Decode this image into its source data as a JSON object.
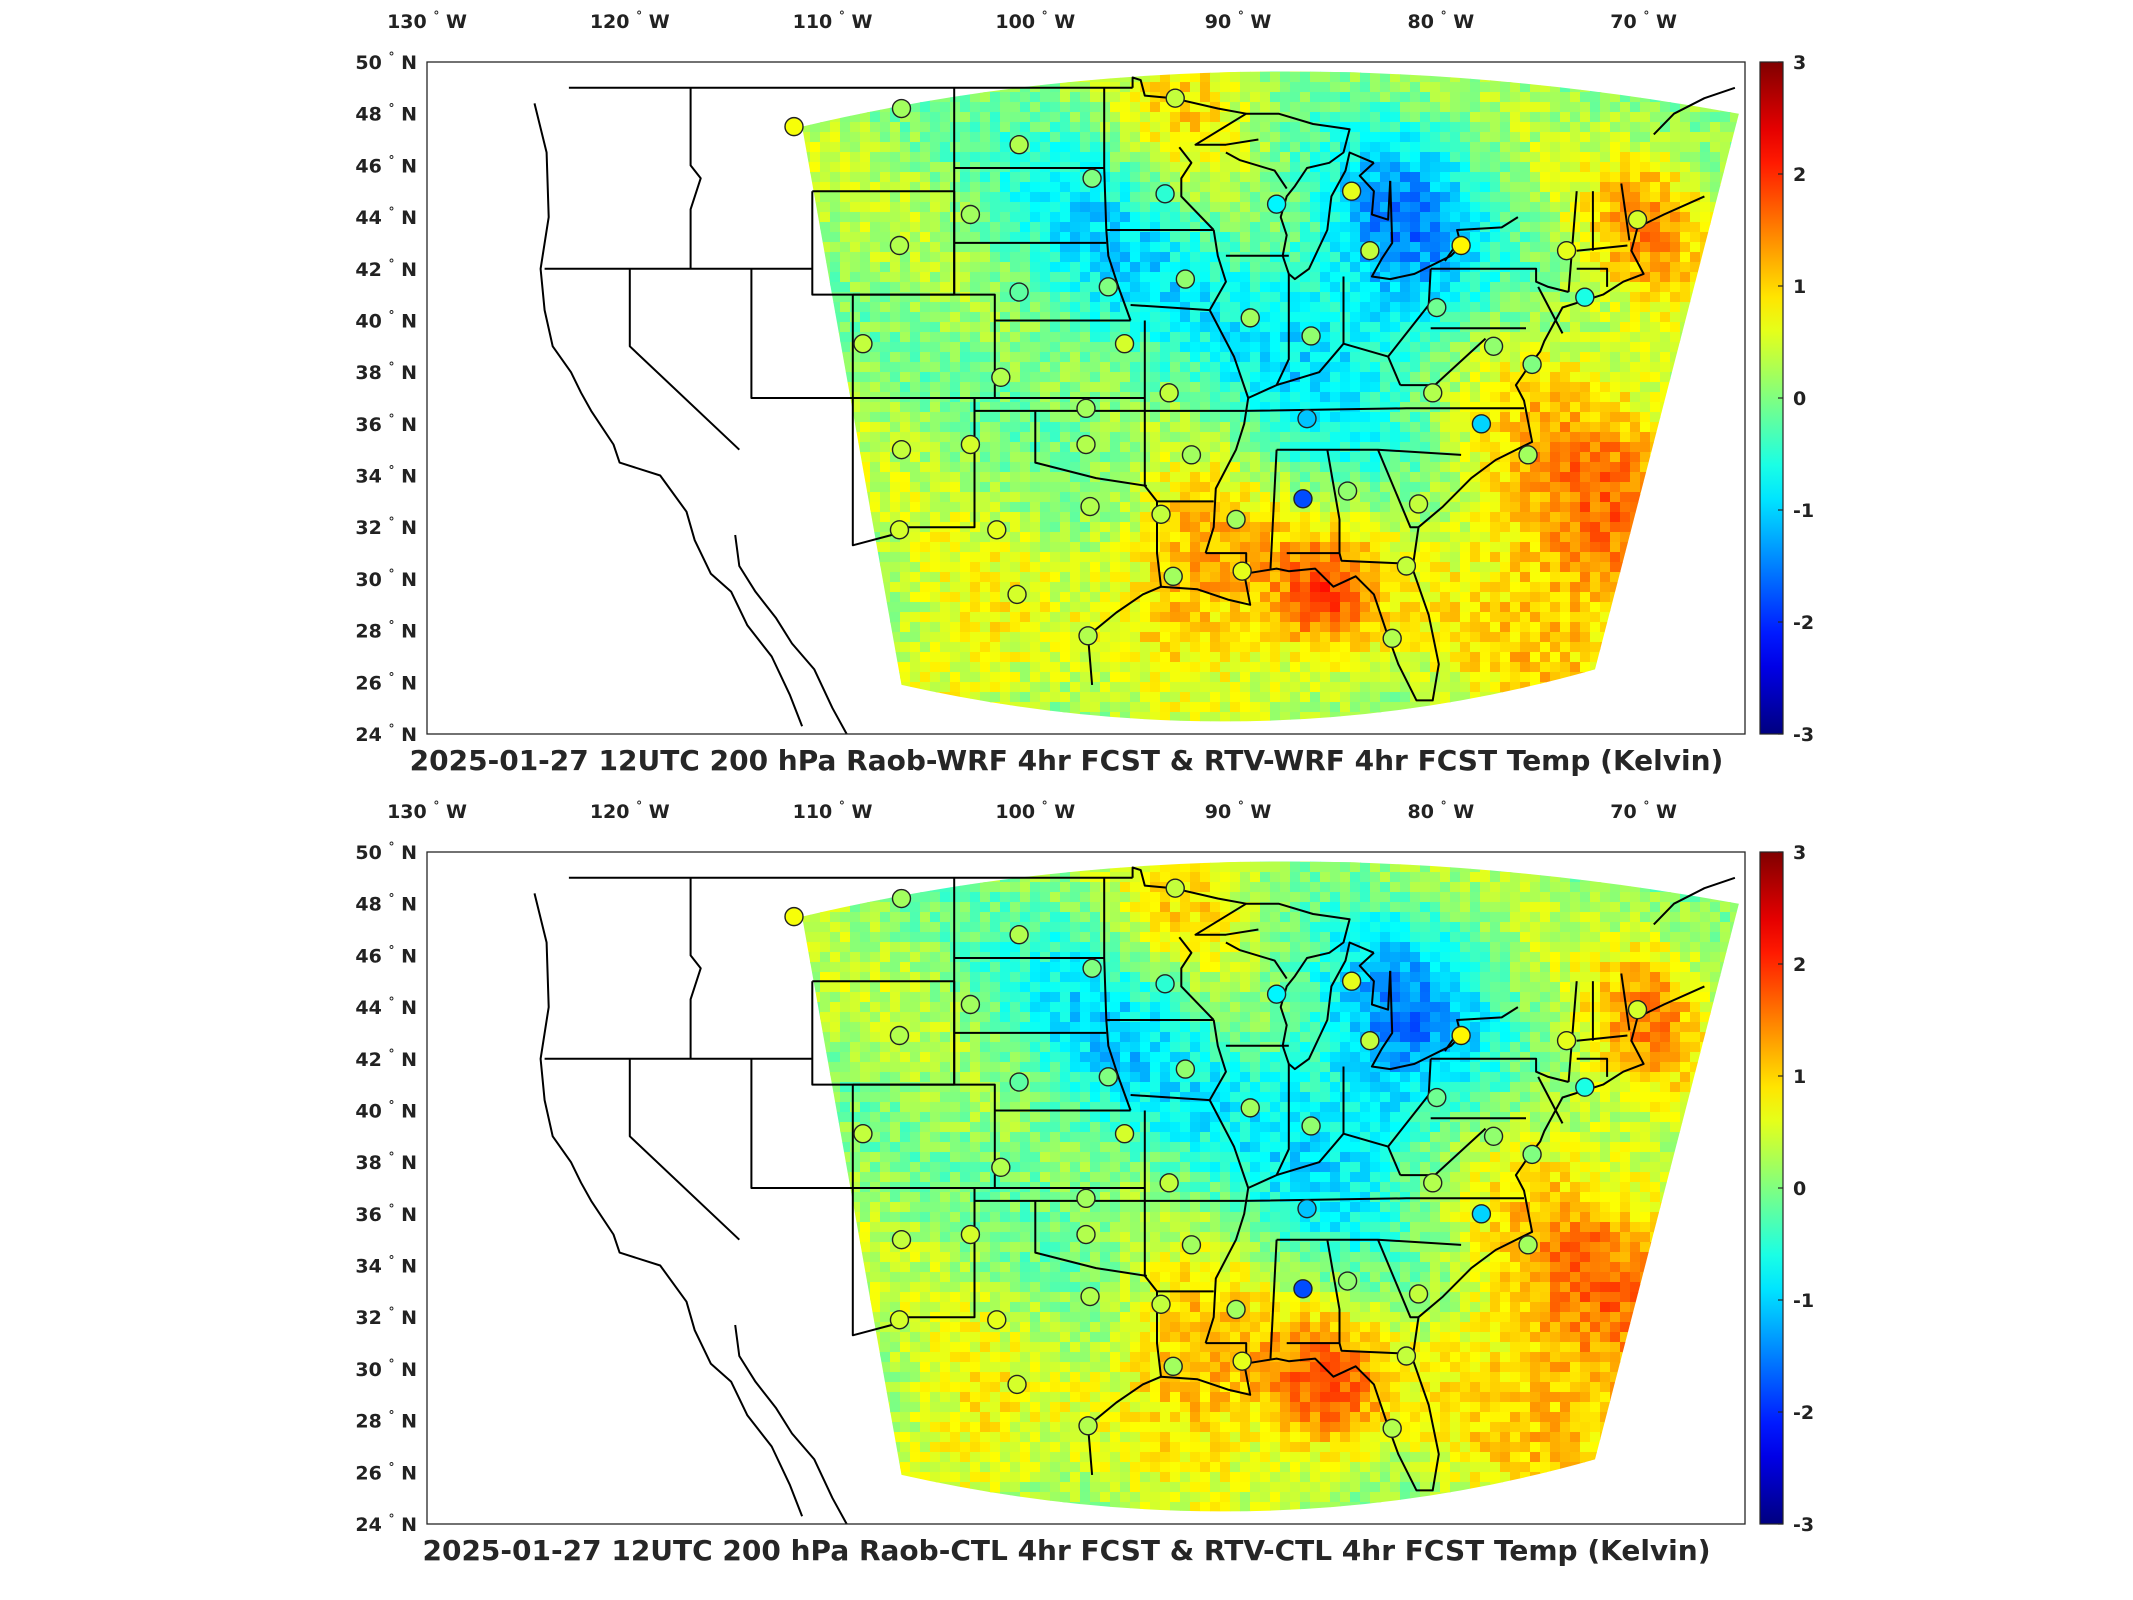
{
  "panels": [
    {
      "id": "top",
      "title": "2025-01-27 12UTC 200 hPa Raob-WRF 4hr FCST & RTV-WRF 4hr FCST Temp (Kelvin)",
      "seed": 7
    },
    {
      "id": "bottom",
      "title": "2025-01-27 12UTC 200 hPa Raob-CTL 4hr FCST & RTV-CTL 4hr FCST Temp (Kelvin)",
      "seed": 11
    }
  ],
  "map": {
    "lon_range": [
      -130,
      -65
    ],
    "lat_range": [
      24,
      50
    ],
    "lon_ticks": [
      {
        "value": -130,
        "label": "130",
        "hemi": "W"
      },
      {
        "value": -120,
        "label": "120",
        "hemi": "W"
      },
      {
        "value": -110,
        "label": "110",
        "hemi": "W"
      },
      {
        "value": -100,
        "label": "100",
        "hemi": "W"
      },
      {
        "value": -90,
        "label": "90",
        "hemi": "W"
      },
      {
        "value": -80,
        "label": "80",
        "hemi": "W"
      },
      {
        "value": -70,
        "label": "70",
        "hemi": "W"
      }
    ],
    "lat_ticks": [
      {
        "value": 50,
        "label": "50",
        "hemi": "N"
      },
      {
        "value": 48,
        "label": "48",
        "hemi": "N"
      },
      {
        "value": 46,
        "label": "46",
        "hemi": "N"
      },
      {
        "value": 44,
        "label": "44",
        "hemi": "N"
      },
      {
        "value": 42,
        "label": "42",
        "hemi": "N"
      },
      {
        "value": 40,
        "label": "40",
        "hemi": "N"
      },
      {
        "value": 38,
        "label": "38",
        "hemi": "N"
      },
      {
        "value": 36,
        "label": "36",
        "hemi": "N"
      },
      {
        "value": 34,
        "label": "34",
        "hemi": "N"
      },
      {
        "value": 32,
        "label": "32",
        "hemi": "N"
      },
      {
        "value": 30,
        "label": "30",
        "hemi": "N"
      },
      {
        "value": 28,
        "label": "28",
        "hemi": "N"
      },
      {
        "value": 26,
        "label": "26",
        "hemi": "N"
      },
      {
        "value": 24,
        "label": "24",
        "hemi": "N"
      }
    ]
  },
  "colorbar": {
    "colormap": "jet",
    "min": -3,
    "max": 3,
    "ticks": [
      {
        "value": 3,
        "label": "3"
      },
      {
        "value": 2,
        "label": "2"
      },
      {
        "value": 1,
        "label": "1"
      },
      {
        "value": 0,
        "label": "0"
      },
      {
        "value": -1,
        "label": "-1"
      },
      {
        "value": -2,
        "label": "-2"
      },
      {
        "value": -3,
        "label": "-3"
      }
    ]
  },
  "raob_stations": [
    {
      "lon": -111.9,
      "lat": 47.5,
      "value": 0.7
    },
    {
      "lon": -106.6,
      "lat": 48.2,
      "value": 0.2
    },
    {
      "lon": -100.8,
      "lat": 46.8,
      "value": 0.3
    },
    {
      "lon": -97.2,
      "lat": 45.5,
      "value": 0.0
    },
    {
      "lon": -93.1,
      "lat": 48.6,
      "value": 0.4
    },
    {
      "lon": -93.6,
      "lat": 44.9,
      "value": -0.5
    },
    {
      "lon": -88.1,
      "lat": 44.5,
      "value": -0.8
    },
    {
      "lon": -84.4,
      "lat": 45.0,
      "value": 0.6
    },
    {
      "lon": -83.5,
      "lat": 42.7,
      "value": 0.4
    },
    {
      "lon": -79.0,
      "lat": 42.9,
      "value": 0.8
    },
    {
      "lon": -73.8,
      "lat": 42.7,
      "value": 0.6
    },
    {
      "lon": -70.3,
      "lat": 43.9,
      "value": 0.5
    },
    {
      "lon": -106.7,
      "lat": 42.9,
      "value": 0.3
    },
    {
      "lon": -103.2,
      "lat": 44.1,
      "value": 0.2
    },
    {
      "lon": -100.8,
      "lat": 41.1,
      "value": -0.2
    },
    {
      "lon": -96.4,
      "lat": 41.3,
      "value": 0.0
    },
    {
      "lon": -92.6,
      "lat": 41.6,
      "value": 0.1
    },
    {
      "lon": -89.4,
      "lat": 40.1,
      "value": 0.2
    },
    {
      "lon": -86.4,
      "lat": 39.4,
      "value": 0.1
    },
    {
      "lon": -80.2,
      "lat": 40.5,
      "value": -0.1
    },
    {
      "lon": -72.9,
      "lat": 40.9,
      "value": -0.6
    },
    {
      "lon": -75.5,
      "lat": 38.3,
      "value": 0.0
    },
    {
      "lon": -77.4,
      "lat": 39.0,
      "value": 0.1
    },
    {
      "lon": -108.5,
      "lat": 39.1,
      "value": 0.4
    },
    {
      "lon": -101.7,
      "lat": 37.8,
      "value": 0.3
    },
    {
      "lon": -97.5,
      "lat": 36.6,
      "value": 0.2
    },
    {
      "lon": -95.6,
      "lat": 39.1,
      "value": 0.5
    },
    {
      "lon": -93.4,
      "lat": 37.2,
      "value": 0.4
    },
    {
      "lon": -86.6,
      "lat": 36.2,
      "value": -1.1
    },
    {
      "lon": -80.4,
      "lat": 37.2,
      "value": 0.3
    },
    {
      "lon": -78.0,
      "lat": 36.0,
      "value": -1.0
    },
    {
      "lon": -75.7,
      "lat": 34.8,
      "value": 0.2
    },
    {
      "lon": -106.6,
      "lat": 35.0,
      "value": 0.4
    },
    {
      "lon": -103.2,
      "lat": 35.2,
      "value": 0.5
    },
    {
      "lon": -97.5,
      "lat": 35.2,
      "value": 0.3
    },
    {
      "lon": -92.3,
      "lat": 34.8,
      "value": 0.2
    },
    {
      "lon": -86.8,
      "lat": 33.1,
      "value": -1.8
    },
    {
      "lon": -84.6,
      "lat": 33.4,
      "value": 0.1
    },
    {
      "lon": -81.1,
      "lat": 32.9,
      "value": 0.4
    },
    {
      "lon": -106.7,
      "lat": 31.9,
      "value": 0.5
    },
    {
      "lon": -101.9,
      "lat": 31.9,
      "value": 0.6
    },
    {
      "lon": -97.3,
      "lat": 32.8,
      "value": 0.3
    },
    {
      "lon": -93.8,
      "lat": 32.5,
      "value": 0.4
    },
    {
      "lon": -90.1,
      "lat": 32.3,
      "value": 0.2
    },
    {
      "lon": -100.9,
      "lat": 29.4,
      "value": 0.5
    },
    {
      "lon": -97.4,
      "lat": 27.8,
      "value": 0.3
    },
    {
      "lon": -93.2,
      "lat": 30.1,
      "value": 0.2
    },
    {
      "lon": -89.8,
      "lat": 30.3,
      "value": 0.6
    },
    {
      "lon": -81.7,
      "lat": 30.5,
      "value": 0.4
    },
    {
      "lon": -82.4,
      "lat": 27.7,
      "value": 0.3
    }
  ]
}
